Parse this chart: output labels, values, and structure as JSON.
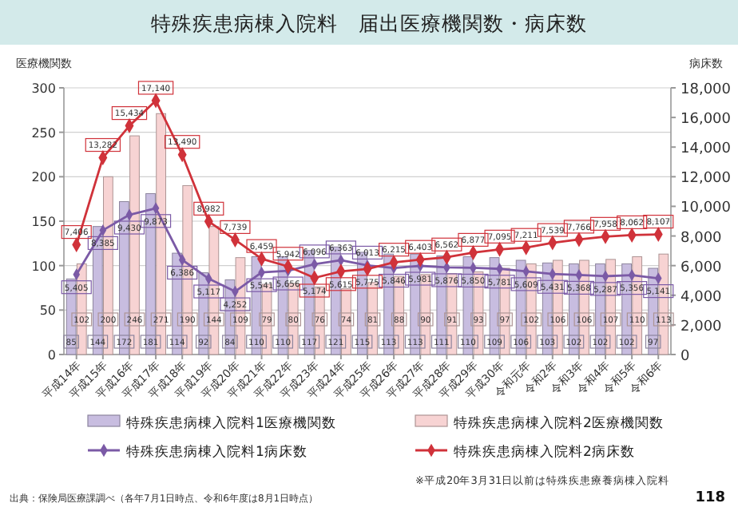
{
  "chart_data": {
    "type": "bar",
    "title": "特殊疾患病棟入院料　届出医療機関数・病床数",
    "ylabel": "医療機関数",
    "y2label": "病床数",
    "categories": [
      "平成14年",
      "平成15年",
      "平成16年",
      "平成17年",
      "平成18年",
      "平成19年",
      "平成20年",
      "平成21年",
      "平成22年",
      "平成23年",
      "平成24年",
      "平成25年",
      "平成26年",
      "平成27年",
      "平成28年",
      "平成29年",
      "平成30年",
      "令和元年",
      "令和2年",
      "令和3年",
      "令和4年",
      "令和5年",
      "令和6年"
    ],
    "series": [
      {
        "name": "特殊疾患病棟入院料1医療機関数",
        "color": "#c8bde0",
        "values": [
          85,
          144,
          172,
          181,
          114,
          92,
          84,
          110,
          110,
          117,
          121,
          115,
          113,
          113,
          111,
          110,
          109,
          106,
          103,
          102,
          102,
          102,
          97
        ],
        "value_labels": [
          "85",
          "144",
          "172",
          "181",
          "114",
          "92",
          "84",
          "110",
          "110",
          "117",
          "121",
          "115",
          "113",
          "113",
          "111",
          "110",
          "109",
          "106",
          "103",
          "102",
          "102",
          "102",
          "97"
        ]
      },
      {
        "name": "特殊疾患病棟入院料2医療機関数",
        "color": "#f7d3d3",
        "values": [
          102,
          200,
          246,
          271,
          190,
          144,
          109,
          79,
          80,
          76,
          74,
          81,
          88,
          90,
          91,
          93,
          97,
          102,
          106,
          106,
          107,
          110,
          113
        ],
        "value_labels": [
          "102",
          "200",
          "246",
          "271",
          "190",
          "144",
          "109",
          "79",
          "80",
          "76",
          "74",
          "81",
          "88",
          "90",
          "91",
          "93",
          "97",
          "102",
          "106",
          "106",
          "107",
          "110",
          "113"
        ]
      },
      {
        "name": "特殊疾患病棟入院料1病床数",
        "type": "line",
        "axis": "y2",
        "color": "#7b5aa6",
        "values": [
          5405,
          8385,
          9430,
          9873,
          6386,
          5117,
          4252,
          5541,
          5656,
          6096,
          6363,
          6013,
          5846,
          5981,
          5876,
          5850,
          5781,
          5609,
          5431,
          5368,
          5287,
          5356,
          5141
        ],
        "value_labels": [
          "5,405",
          "8,385",
          "9,430",
          "9,873",
          "6,386",
          "5,117",
          "4,252",
          "5,541",
          "5,656",
          "6,096",
          "6,363",
          "6,013",
          "5,846",
          "5,981",
          "5,876",
          "5,850",
          "5,781",
          "5,609",
          "5,431",
          "5,368",
          "5,287",
          "5,356",
          "5,141"
        ]
      },
      {
        "name": "特殊疾患病棟入院料2病床数",
        "type": "line",
        "axis": "y2",
        "color": "#d0323a",
        "values": [
          7406,
          13282,
          15434,
          17140,
          13490,
          8982,
          7739,
          6459,
          5942,
          5174,
          5615,
          5775,
          6215,
          6403,
          6562,
          6877,
          7095,
          7211,
          7539,
          7766,
          7958,
          8062,
          8107
        ],
        "value_labels": [
          "7,406",
          "13,282",
          "15,434",
          "17,140",
          "13,490",
          "8,982",
          "7,739",
          "6,459",
          "5,942",
          "5,174",
          "5,615",
          "5,775",
          "6,215",
          "6,403",
          "6,562",
          "6,877",
          "7,095",
          "7,211",
          "7,539",
          "7,766",
          "7,958",
          "8,062",
          "8,107"
        ]
      }
    ],
    "ylim": [
      0,
      300
    ],
    "yticks": [
      0,
      50,
      100,
      150,
      200,
      250,
      300
    ],
    "y2lim": [
      0,
      18000
    ],
    "y2ticks": [
      {
        "value": 0,
        "label": "0"
      },
      {
        "value": 2000,
        "label": "2,000"
      },
      {
        "value": 4000,
        "label": "4,000"
      },
      {
        "value": 6000,
        "label": "6,000"
      },
      {
        "value": 8000,
        "label": "8,000"
      },
      {
        "value": 10000,
        "label": "10,000"
      },
      {
        "value": 12000,
        "label": "12,000"
      },
      {
        "value": 14000,
        "label": "14,000"
      },
      {
        "value": 16000,
        "label": "16,000"
      },
      {
        "value": 18000,
        "label": "18,000"
      }
    ],
    "grid": "y",
    "legend": "bottom",
    "marker": "diamond",
    "annotations": [
      "出典：保険局医療課調べ（各年7月1日時点、令和6年度は8月1日時点）",
      "※平成20年3月31日以前は特殊疾患療養病棟入院料",
      "118"
    ]
  }
}
